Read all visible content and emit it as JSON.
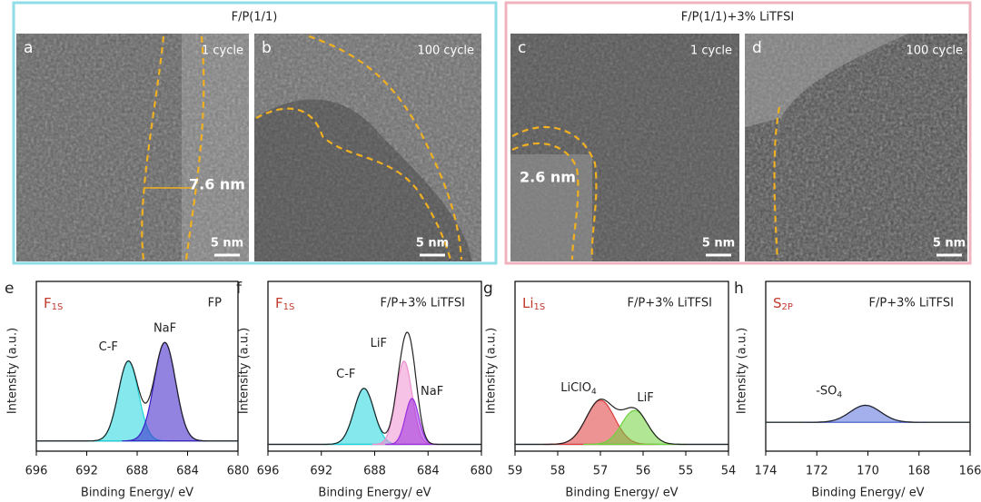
{
  "panels_top": {
    "groups": [
      {
        "title": "F/P(1/1)"
      },
      {
        "title": "F/P(1/1)+3% LiTFSI"
      }
    ],
    "images": [
      {
        "letter": "a",
        "cycle": "1 cycle",
        "scale": "5 nm",
        "annotation": "7.6 nm"
      },
      {
        "letter": "b",
        "cycle": "100 cycle",
        "scale": "5 nm"
      },
      {
        "letter": "c",
        "cycle": "1 cycle",
        "scale": "5 nm",
        "annotation": "2.6 nm"
      },
      {
        "letter": "d",
        "cycle": "100 cycle",
        "scale": "5 nm"
      }
    ]
  },
  "chart_data": [
    {
      "type": "xps",
      "letter": "e",
      "element": "F",
      "element_sub": "1S",
      "sample": "FP",
      "xlabel": "Binding Energy/ eV",
      "ylabel": "Intensity (a.u.)",
      "xlim": [
        696,
        680
      ],
      "xticks": [
        696,
        692,
        688,
        684,
        680
      ],
      "ylim": [
        0,
        1
      ],
      "baseline": 0.06,
      "peaks": [
        {
          "label": "C-F",
          "color": "#1fd6dc",
          "center": 688.7,
          "height": 0.47,
          "width": 0.8
        },
        {
          "label": "NaF",
          "color": "#3a1ec8",
          "center": 685.8,
          "height": 0.58,
          "width": 0.85
        }
      ]
    },
    {
      "type": "xps",
      "letter": "f",
      "element": "F",
      "element_sub": "1S",
      "sample": "F/P+3% LiTFSI",
      "xlabel": "Binding Energy/ eV",
      "ylabel": "Intensity (a.u.)",
      "xlim": [
        696,
        680
      ],
      "xticks": [
        696,
        692,
        688,
        684,
        680
      ],
      "ylim": [
        0,
        1
      ],
      "baseline": 0.04,
      "peaks": [
        {
          "label": "C-F",
          "color": "#1fd6dc",
          "center": 688.8,
          "height": 0.33,
          "width": 0.75
        },
        {
          "label": "LiF",
          "color": "#ee8fcf",
          "center": 685.8,
          "height": 0.49,
          "width": 0.6
        },
        {
          "label": "NaF",
          "color": "#9b2ee0",
          "center": 685.2,
          "height": 0.27,
          "width": 0.5
        }
      ]
    },
    {
      "type": "xps",
      "letter": "g",
      "element": "Li",
      "element_sub": "1S",
      "sample": "F/P+3% LiTFSI",
      "xlabel": "Binding Energy/ eV",
      "ylabel": "Intensity (a.u.)",
      "xlim": [
        59,
        54
      ],
      "xticks": [
        59,
        58,
        57,
        56,
        55,
        54
      ],
      "ylim": [
        0,
        1
      ],
      "baseline": 0.04,
      "peaks": [
        {
          "label": "LiClO",
          "label_sub": "4",
          "color": "#de3b3b",
          "center": 57.0,
          "height": 0.26,
          "width": 0.33
        },
        {
          "label": "LiF",
          "color": "#6fd13c",
          "center": 56.2,
          "height": 0.2,
          "width": 0.3
        }
      ]
    },
    {
      "type": "xps",
      "letter": "h",
      "element": "S",
      "element_sub": "2P",
      "sample": "F/P+3% LiTFSI",
      "xlabel": "Binding Energy/ eV",
      "ylabel": "Intensity (a.u.)",
      "xlim": [
        174,
        166
      ],
      "xticks": [
        174,
        172,
        170,
        168,
        166
      ],
      "ylim": [
        0,
        1
      ],
      "baseline": 0.17,
      "peaks": [
        {
          "label": "-SO",
          "label_sub": "4",
          "color": "#5a6fdc",
          "center": 170.1,
          "height": 0.1,
          "width": 0.6
        }
      ]
    }
  ]
}
